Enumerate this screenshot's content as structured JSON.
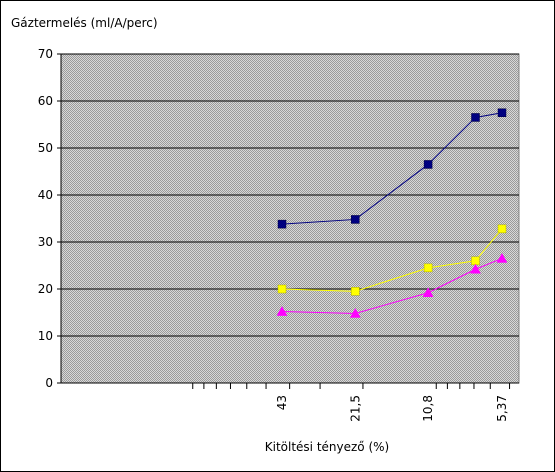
{
  "chart_data": {
    "type": "line",
    "title": "",
    "ylabel": "Gáztermelés (ml/A/perc)",
    "xlabel": "Kitöltési tényező (%)",
    "x_scale": "log-reversed",
    "x_ticks": [
      {
        "label": "43",
        "value": 43
      },
      {
        "label": "21,5",
        "value": 21.5
      },
      {
        "label": "10,8",
        "value": 10.8
      },
      {
        "label": "5,37",
        "value": 5.37
      }
    ],
    "x": [
      43,
      21.5,
      10.8,
      6.9,
      5.37
    ],
    "ylim": [
      0,
      70
    ],
    "yticks": [
      0,
      10,
      20,
      30,
      40,
      50,
      60,
      70
    ],
    "grid": true,
    "plot_background": "#c0c0c0",
    "series": [
      {
        "color": "#000080",
        "marker": "square",
        "values": [
          33.8,
          34.8,
          46.5,
          56.5,
          57.5
        ]
      },
      {
        "color": "#ffff00",
        "marker": "square",
        "values": [
          20,
          19.5,
          24.5,
          26,
          32.8
        ]
      },
      {
        "color": "#ff00ff",
        "marker": "triangle",
        "values": [
          15.2,
          14.8,
          19.2,
          24.2,
          26.5
        ]
      }
    ]
  }
}
